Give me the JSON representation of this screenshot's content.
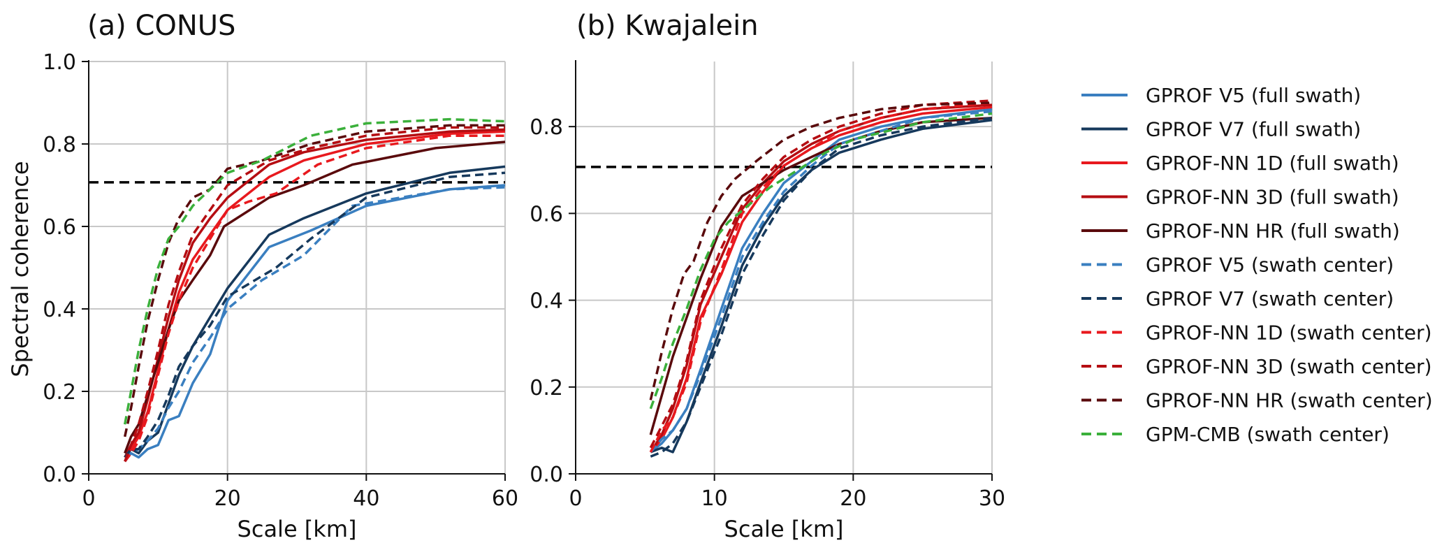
{
  "colors": {
    "gprof_v5": "#3a7fc0",
    "gprof_v7": "#16395c",
    "gprof_nn_1d": "#e8191e",
    "gprof_nn_3d": "#b50d12",
    "gprof_nn_hr": "#5a0a0c",
    "gpm_cmb": "#3bb03b",
    "reference": "#000000",
    "grid": "#c8c8c8"
  },
  "legend": {
    "placement": "right",
    "entries": [
      {
        "label": "GPROF V5 (full swath)",
        "color": "#3a7fc0",
        "dashed": false
      },
      {
        "label": "GPROF V7 (full swath)",
        "color": "#16395c",
        "dashed": false
      },
      {
        "label": "GPROF-NN 1D (full swath)",
        "color": "#e8191e",
        "dashed": false
      },
      {
        "label": "GPROF-NN 3D (full swath)",
        "color": "#b50d12",
        "dashed": false
      },
      {
        "label": "GPROF-NN HR (full swath)",
        "color": "#5a0a0c",
        "dashed": false
      },
      {
        "label": "GPROF V5 (swath center)",
        "color": "#3a7fc0",
        "dashed": true
      },
      {
        "label": "GPROF V7 (swath center)",
        "color": "#16395c",
        "dashed": true
      },
      {
        "label": "GPROF-NN 1D (swath center)",
        "color": "#e8191e",
        "dashed": true
      },
      {
        "label": "GPROF-NN 3D (swath center)",
        "color": "#b50d12",
        "dashed": true
      },
      {
        "label": "GPROF-NN HR (swath center)",
        "color": "#5a0a0c",
        "dashed": true
      },
      {
        "label": "GPM-CMB (swath center)",
        "color": "#3bb03b",
        "dashed": true
      }
    ]
  },
  "chart_data": [
    {
      "type": "line",
      "title": "(a) CONUS",
      "xlabel": "Scale [km]",
      "ylabel": "Spectral coherence",
      "xlim": [
        0,
        60
      ],
      "ylim": [
        0,
        1.0
      ],
      "xticks": [
        "0",
        "20",
        "40",
        "60"
      ],
      "yticks": [
        "0.0",
        "0.2",
        "0.4",
        "0.6",
        "0.8",
        "1.0"
      ],
      "grid": true,
      "reference_line": 0.707,
      "series": [
        {
          "name": "GPROF V5 (full swath)",
          "dashed": false,
          "color": "#3a7fc0",
          "x": [
            5.2,
            6.1,
            7.2,
            8.5,
            10.0,
            11.5,
            13.0,
            15.0,
            17.5,
            20.0,
            26.0,
            32.0,
            40.0,
            52.0,
            60.0
          ],
          "y": [
            0.03,
            0.05,
            0.04,
            0.06,
            0.07,
            0.13,
            0.14,
            0.22,
            0.29,
            0.42,
            0.55,
            0.59,
            0.65,
            0.69,
            0.7
          ]
        },
        {
          "name": "GPROF V7 (full swath)",
          "dashed": false,
          "color": "#16395c",
          "x": [
            5.2,
            6.1,
            7.2,
            8.5,
            10.0,
            11.5,
            13.0,
            15.0,
            17.5,
            20.0,
            26.0,
            31.0,
            40.0,
            52.0,
            60.0
          ],
          "y": [
            0.04,
            0.06,
            0.05,
            0.08,
            0.1,
            0.17,
            0.24,
            0.31,
            0.38,
            0.45,
            0.58,
            0.62,
            0.68,
            0.73,
            0.745
          ]
        },
        {
          "name": "GPROF-NN 1D (full swath)",
          "dashed": false,
          "color": "#e8191e",
          "x": [
            5.2,
            6.1,
            7.2,
            8.5,
            10.0,
            11.5,
            13.0,
            15.0,
            17.5,
            20.0,
            26.0,
            31.0,
            40.0,
            52.0,
            60.0
          ],
          "y": [
            0.04,
            0.06,
            0.09,
            0.15,
            0.25,
            0.35,
            0.44,
            0.52,
            0.58,
            0.64,
            0.72,
            0.76,
            0.8,
            0.825,
            0.83
          ]
        },
        {
          "name": "GPROF-NN 3D (full swath)",
          "dashed": false,
          "color": "#b50d12",
          "x": [
            5.2,
            6.1,
            7.2,
            8.5,
            10.0,
            11.5,
            13.0,
            15.0,
            17.5,
            20.0,
            26.0,
            31.0,
            40.0,
            52.0,
            60.0
          ],
          "y": [
            0.04,
            0.07,
            0.1,
            0.18,
            0.28,
            0.38,
            0.47,
            0.56,
            0.62,
            0.67,
            0.75,
            0.78,
            0.81,
            0.83,
            0.835
          ]
        },
        {
          "name": "GPROF-NN HR (full swath)",
          "dashed": false,
          "color": "#5a0a0c",
          "x": [
            5.2,
            6.1,
            7.2,
            8.5,
            10.0,
            11.5,
            13.0,
            15.0,
            17.5,
            19.5,
            26.0,
            31.0,
            38.0,
            50.0,
            60.0
          ],
          "y": [
            0.05,
            0.09,
            0.12,
            0.19,
            0.27,
            0.35,
            0.42,
            0.47,
            0.53,
            0.6,
            0.67,
            0.7,
            0.75,
            0.79,
            0.805
          ]
        },
        {
          "name": "GPROF V5 (swath center)",
          "dashed": true,
          "color": "#3a7fc0",
          "x": [
            5.2,
            6.1,
            7.2,
            8.5,
            10.0,
            11.5,
            13.0,
            15.0,
            17.5,
            20.0,
            25.0,
            31.0,
            38.0,
            52.0,
            60.0
          ],
          "y": [
            0.04,
            0.05,
            0.06,
            0.08,
            0.11,
            0.16,
            0.2,
            0.27,
            0.33,
            0.4,
            0.47,
            0.53,
            0.65,
            0.69,
            0.695
          ]
        },
        {
          "name": "GPROF V7 (swath center)",
          "dashed": true,
          "color": "#16395c",
          "x": [
            5.2,
            6.1,
            7.2,
            8.5,
            10.0,
            11.5,
            13.0,
            15.0,
            17.5,
            20.0,
            27.0,
            32.0,
            40.0,
            52.0,
            60.0
          ],
          "y": [
            0.04,
            0.06,
            0.06,
            0.09,
            0.13,
            0.19,
            0.26,
            0.31,
            0.36,
            0.43,
            0.5,
            0.57,
            0.67,
            0.72,
            0.73
          ]
        },
        {
          "name": "GPROF-NN 1D (swath center)",
          "dashed": true,
          "color": "#e8191e",
          "x": [
            5.2,
            6.1,
            7.2,
            8.5,
            10.0,
            11.5,
            13.0,
            15.0,
            17.5,
            20.0,
            23.0,
            27.0,
            33.0,
            40.0,
            52.0,
            60.0
          ],
          "y": [
            0.03,
            0.05,
            0.08,
            0.14,
            0.24,
            0.34,
            0.42,
            0.5,
            0.57,
            0.64,
            0.66,
            0.68,
            0.75,
            0.79,
            0.82,
            0.82
          ]
        },
        {
          "name": "GPROF-NN 3D (swath center)",
          "dashed": true,
          "color": "#b50d12",
          "x": [
            5.2,
            6.1,
            7.2,
            8.5,
            10.0,
            11.5,
            13.0,
            15.0,
            17.5,
            20.0,
            26.0,
            32.0,
            40.0,
            52.0,
            60.0
          ],
          "y": [
            0.03,
            0.07,
            0.12,
            0.2,
            0.3,
            0.41,
            0.49,
            0.58,
            0.64,
            0.7,
            0.76,
            0.79,
            0.82,
            0.84,
            0.84
          ]
        },
        {
          "name": "GPROF-NN HR (swath center)",
          "dashed": true,
          "color": "#5a0a0c",
          "x": [
            5.2,
            6.1,
            7.2,
            8.5,
            10.0,
            11.5,
            13.0,
            15.0,
            17.5,
            20.0,
            25.0,
            32.0,
            40.0,
            52.0,
            60.0
          ],
          "y": [
            0.09,
            0.16,
            0.26,
            0.37,
            0.47,
            0.56,
            0.62,
            0.67,
            0.69,
            0.74,
            0.76,
            0.8,
            0.83,
            0.845,
            0.845
          ]
        },
        {
          "name": "GPM-CMB (swath center)",
          "dashed": true,
          "color": "#3bb03b",
          "x": [
            5.2,
            6.1,
            7.2,
            8.5,
            10.0,
            11.5,
            13.0,
            15.0,
            17.5,
            20.0,
            25.0,
            32.0,
            40.0,
            52.0,
            60.0
          ],
          "y": [
            0.12,
            0.2,
            0.3,
            0.4,
            0.5,
            0.57,
            0.6,
            0.65,
            0.69,
            0.73,
            0.76,
            0.82,
            0.85,
            0.86,
            0.855
          ]
        }
      ]
    },
    {
      "type": "line",
      "title": "(b) Kwajalein",
      "xlabel": "Scale [km]",
      "ylabel": "",
      "xlim": [
        0,
        30
      ],
      "ylim": [
        0,
        0.95
      ],
      "xticks": [
        "0",
        "10",
        "20",
        "30"
      ],
      "yticks": [
        "0.0",
        "0.2",
        "0.4",
        "0.6",
        "0.8"
      ],
      "grid": true,
      "reference_line": 0.707,
      "series": [
        {
          "name": "GPROF V5 (full swath)",
          "dashed": false,
          "color": "#3a7fc0",
          "x": [
            5.4,
            6.2,
            7.0,
            8.0,
            9.0,
            10.5,
            12.0,
            13.5,
            15.0,
            17.0,
            19.0,
            22.0,
            25.0,
            30.0
          ],
          "y": [
            0.05,
            0.07,
            0.1,
            0.15,
            0.24,
            0.38,
            0.52,
            0.6,
            0.67,
            0.72,
            0.77,
            0.8,
            0.82,
            0.84
          ]
        },
        {
          "name": "GPROF V7 (full swath)",
          "dashed": false,
          "color": "#16395c",
          "x": [
            5.4,
            6.2,
            7.0,
            8.0,
            9.0,
            10.5,
            12.0,
            13.5,
            15.0,
            17.0,
            19.0,
            22.0,
            25.0,
            30.0
          ],
          "y": [
            0.05,
            0.06,
            0.05,
            0.12,
            0.21,
            0.34,
            0.48,
            0.57,
            0.64,
            0.7,
            0.74,
            0.77,
            0.795,
            0.815
          ]
        },
        {
          "name": "GPROF-NN 1D (full swath)",
          "dashed": false,
          "color": "#e8191e",
          "x": [
            5.4,
            6.2,
            7.0,
            8.0,
            9.0,
            10.5,
            12.0,
            13.5,
            15.0,
            17.0,
            19.0,
            22.0,
            25.0,
            30.0
          ],
          "y": [
            0.05,
            0.08,
            0.13,
            0.22,
            0.36,
            0.46,
            0.58,
            0.65,
            0.71,
            0.75,
            0.78,
            0.81,
            0.83,
            0.845
          ]
        },
        {
          "name": "GPROF-NN 3D (full swath)",
          "dashed": false,
          "color": "#b50d12",
          "x": [
            5.4,
            6.2,
            7.0,
            8.0,
            9.0,
            10.5,
            12.0,
            13.5,
            15.0,
            17.0,
            19.0,
            22.0,
            25.0,
            30.0
          ],
          "y": [
            0.05,
            0.09,
            0.15,
            0.25,
            0.39,
            0.5,
            0.61,
            0.67,
            0.72,
            0.76,
            0.79,
            0.82,
            0.84,
            0.85
          ]
        },
        {
          "name": "GPROF-NN HR (full swath)",
          "dashed": false,
          "color": "#5a0a0c",
          "x": [
            5.4,
            6.2,
            7.0,
            8.0,
            9.0,
            10.5,
            12.0,
            13.5,
            15.0,
            17.0,
            19.0,
            22.0,
            25.0,
            30.0
          ],
          "y": [
            0.09,
            0.18,
            0.27,
            0.36,
            0.45,
            0.57,
            0.64,
            0.67,
            0.7,
            0.73,
            0.76,
            0.79,
            0.81,
            0.82
          ]
        },
        {
          "name": "GPROF V5 (swath center)",
          "dashed": true,
          "color": "#3a7fc0",
          "x": [
            5.4,
            6.2,
            7.0,
            8.0,
            9.0,
            10.5,
            12.0,
            13.5,
            15.0,
            17.0,
            19.0,
            22.0,
            25.0,
            30.0
          ],
          "y": [
            0.05,
            0.08,
            0.1,
            0.15,
            0.23,
            0.36,
            0.5,
            0.58,
            0.65,
            0.71,
            0.76,
            0.79,
            0.82,
            0.835
          ]
        },
        {
          "name": "GPROF V7 (swath center)",
          "dashed": true,
          "color": "#16395c",
          "x": [
            5.4,
            6.2,
            7.0,
            8.0,
            9.0,
            10.5,
            12.0,
            13.5,
            15.0,
            17.0,
            19.0,
            22.0,
            25.0,
            30.0
          ],
          "y": [
            0.04,
            0.05,
            0.07,
            0.12,
            0.2,
            0.32,
            0.46,
            0.55,
            0.63,
            0.7,
            0.75,
            0.78,
            0.8,
            0.82
          ]
        },
        {
          "name": "GPROF-NN 1D (swath center)",
          "dashed": true,
          "color": "#e8191e",
          "x": [
            5.4,
            6.2,
            7.0,
            8.0,
            9.0,
            10.5,
            12.0,
            13.5,
            15.0,
            17.0,
            19.0,
            22.0,
            25.0,
            30.0
          ],
          "y": [
            0.05,
            0.1,
            0.13,
            0.21,
            0.35,
            0.47,
            0.6,
            0.66,
            0.71,
            0.75,
            0.79,
            0.82,
            0.84,
            0.855
          ]
        },
        {
          "name": "GPROF-NN 3D (swath center)",
          "dashed": true,
          "color": "#b50d12",
          "x": [
            5.4,
            6.2,
            7.0,
            8.0,
            9.0,
            10.5,
            12.0,
            13.5,
            15.0,
            17.0,
            19.0,
            22.0,
            25.0,
            30.0
          ],
          "y": [
            0.06,
            0.11,
            0.16,
            0.26,
            0.4,
            0.52,
            0.62,
            0.68,
            0.73,
            0.77,
            0.8,
            0.83,
            0.85,
            0.86
          ]
        },
        {
          "name": "GPROF-NN HR (swath center)",
          "dashed": true,
          "color": "#5a0a0c",
          "x": [
            5.4,
            6.2,
            7.0,
            7.8,
            8.5,
            9.5,
            10.5,
            11.5,
            13.0,
            15.0,
            17.0,
            19.0,
            22.0,
            25.0,
            30.0
          ],
          "y": [
            0.17,
            0.28,
            0.38,
            0.46,
            0.49,
            0.58,
            0.64,
            0.68,
            0.72,
            0.77,
            0.8,
            0.82,
            0.84,
            0.85,
            0.855
          ]
        },
        {
          "name": "GPM-CMB (swath center)",
          "dashed": true,
          "color": "#3bb03b",
          "x": [
            5.4,
            6.2,
            7.0,
            8.0,
            9.0,
            10.0,
            11.0,
            12.5,
            14.0,
            16.0,
            18.0,
            20.0,
            25.0,
            30.0
          ],
          "y": [
            0.15,
            0.22,
            0.3,
            0.38,
            0.47,
            0.54,
            0.58,
            0.62,
            0.66,
            0.7,
            0.74,
            0.77,
            0.81,
            0.83
          ]
        }
      ]
    }
  ]
}
